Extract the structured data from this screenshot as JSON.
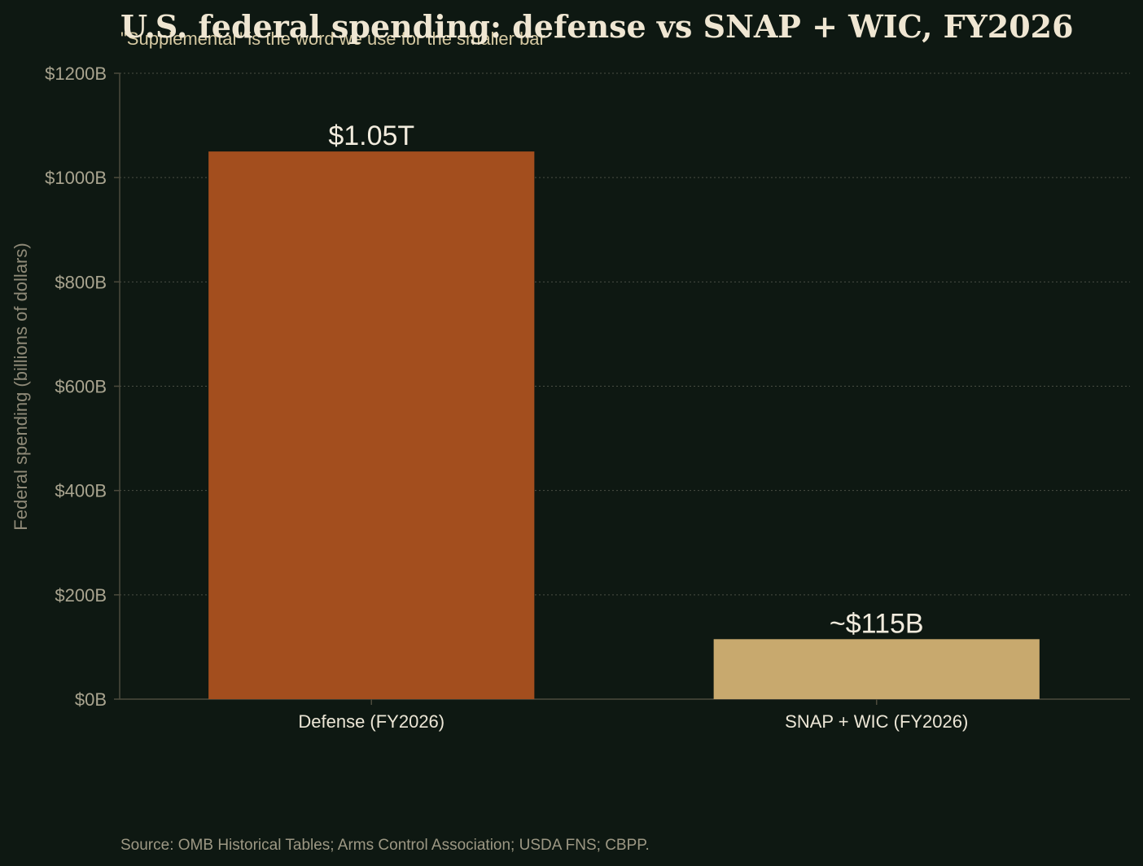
{
  "chart_data": {
    "type": "bar",
    "title": "U.S. federal spending: defense vs SNAP + WIC, FY2026",
    "subtitle": "\"Supplemental\" is the word we use for the smaller bar",
    "ylabel": "Federal spending (billions of dollars)",
    "xlabel": "",
    "ylim": [
      0,
      1200
    ],
    "yticks": [
      0,
      200,
      400,
      600,
      800,
      1000,
      1200
    ],
    "ytick_labels": [
      "$0B",
      "$200B",
      "$400B",
      "$600B",
      "$800B",
      "$1000B",
      "$1200B"
    ],
    "grid": true,
    "categories": [
      "Defense (FY2026)",
      "SNAP + WIC (FY2026)"
    ],
    "values": [
      1050,
      115
    ],
    "value_labels": [
      "$1.05T",
      "~$115B"
    ],
    "colors": [
      "#a34e1e",
      "#c8a96e"
    ],
    "source": "Source: OMB Historical Tables; Arms Control Association; USDA FNS; CBPP."
  }
}
